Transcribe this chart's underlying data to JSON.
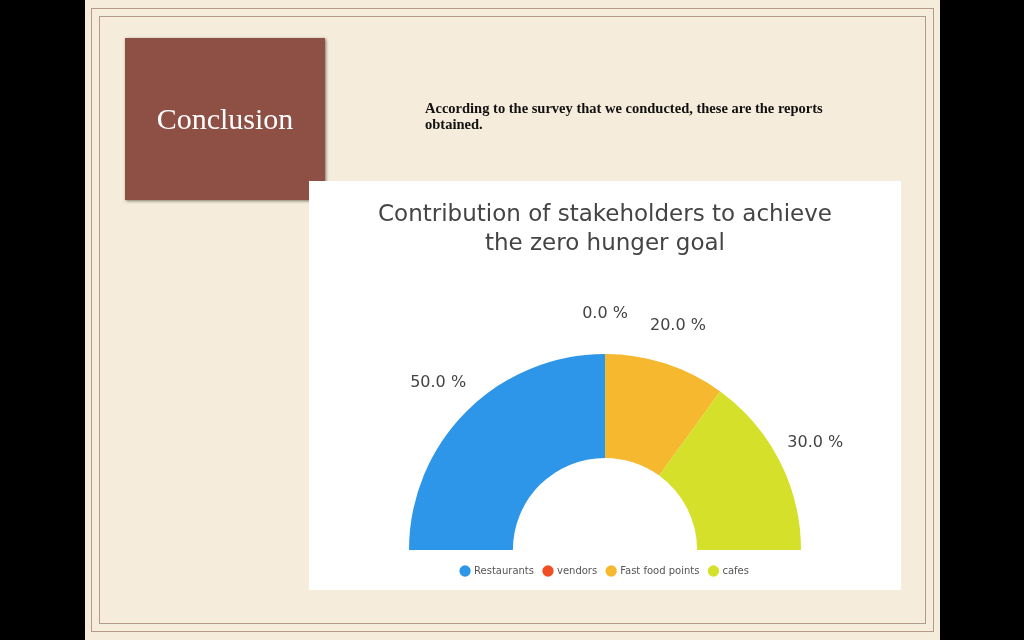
{
  "chart_data": {
    "type": "donut",
    "title": "Contribution of stakeholders to achieve the zero hunger goal",
    "categories": [
      "Restaurants",
      "vendors",
      "Fast food points",
      "cafes"
    ],
    "values": [
      50,
      0,
      20,
      30
    ],
    "colors": [
      "#2d96e8",
      "#f04e23",
      "#f5b82e",
      "#d5e02a"
    ],
    "value_labels": [
      "50.0 %",
      "0.0 %",
      "20.0 %",
      "30.0 %"
    ],
    "legend": "bottom",
    "annotations": [
      "Conclusion",
      "According to the survey that we conducted, these are the reports obtained."
    ]
  }
}
